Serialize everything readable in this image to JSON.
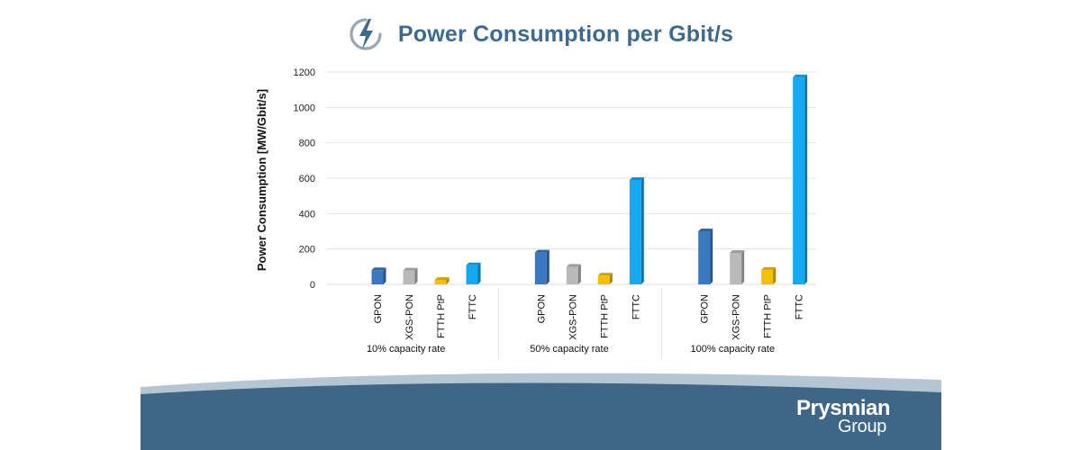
{
  "header": {
    "title": "Power Consumption per Gbit/s",
    "icon": "lightning-bolt-icon"
  },
  "colors": {
    "title": "#3d6a8e",
    "footer_band": "#3f6686",
    "footer_swoosh": "#b5c6d3",
    "GPON": "#3a78c2",
    "XGS-PON": "#b9b9b9",
    "FTTH PtP": "#f6c000",
    "FTTC": "#12aaf0"
  },
  "chart_data": {
    "type": "bar",
    "title": "Power Consumption per Gbit/s",
    "ylabel": "Power Consumption [MW/Gbit/s]",
    "xlabel": "",
    "ylim": [
      0,
      1200
    ],
    "yticks": [
      0,
      200,
      400,
      600,
      800,
      1000,
      1200
    ],
    "gridlines": true,
    "groups": [
      "10% capacity rate",
      "50% capacity rate",
      "100% capacity rate"
    ],
    "categories": [
      "GPON",
      "XGS-PON",
      "FTTH PtP",
      "FTTC"
    ],
    "series": [
      {
        "name": "10% capacity rate",
        "values": [
          80,
          78,
          25,
          108
        ]
      },
      {
        "name": "50% capacity rate",
        "values": [
          180,
          100,
          50,
          590
        ]
      },
      {
        "name": "100% capacity rate",
        "values": [
          300,
          178,
          82,
          1170
        ]
      }
    ]
  },
  "footer": {
    "logo_line1": "Prysmian",
    "logo_line2": "Group"
  }
}
